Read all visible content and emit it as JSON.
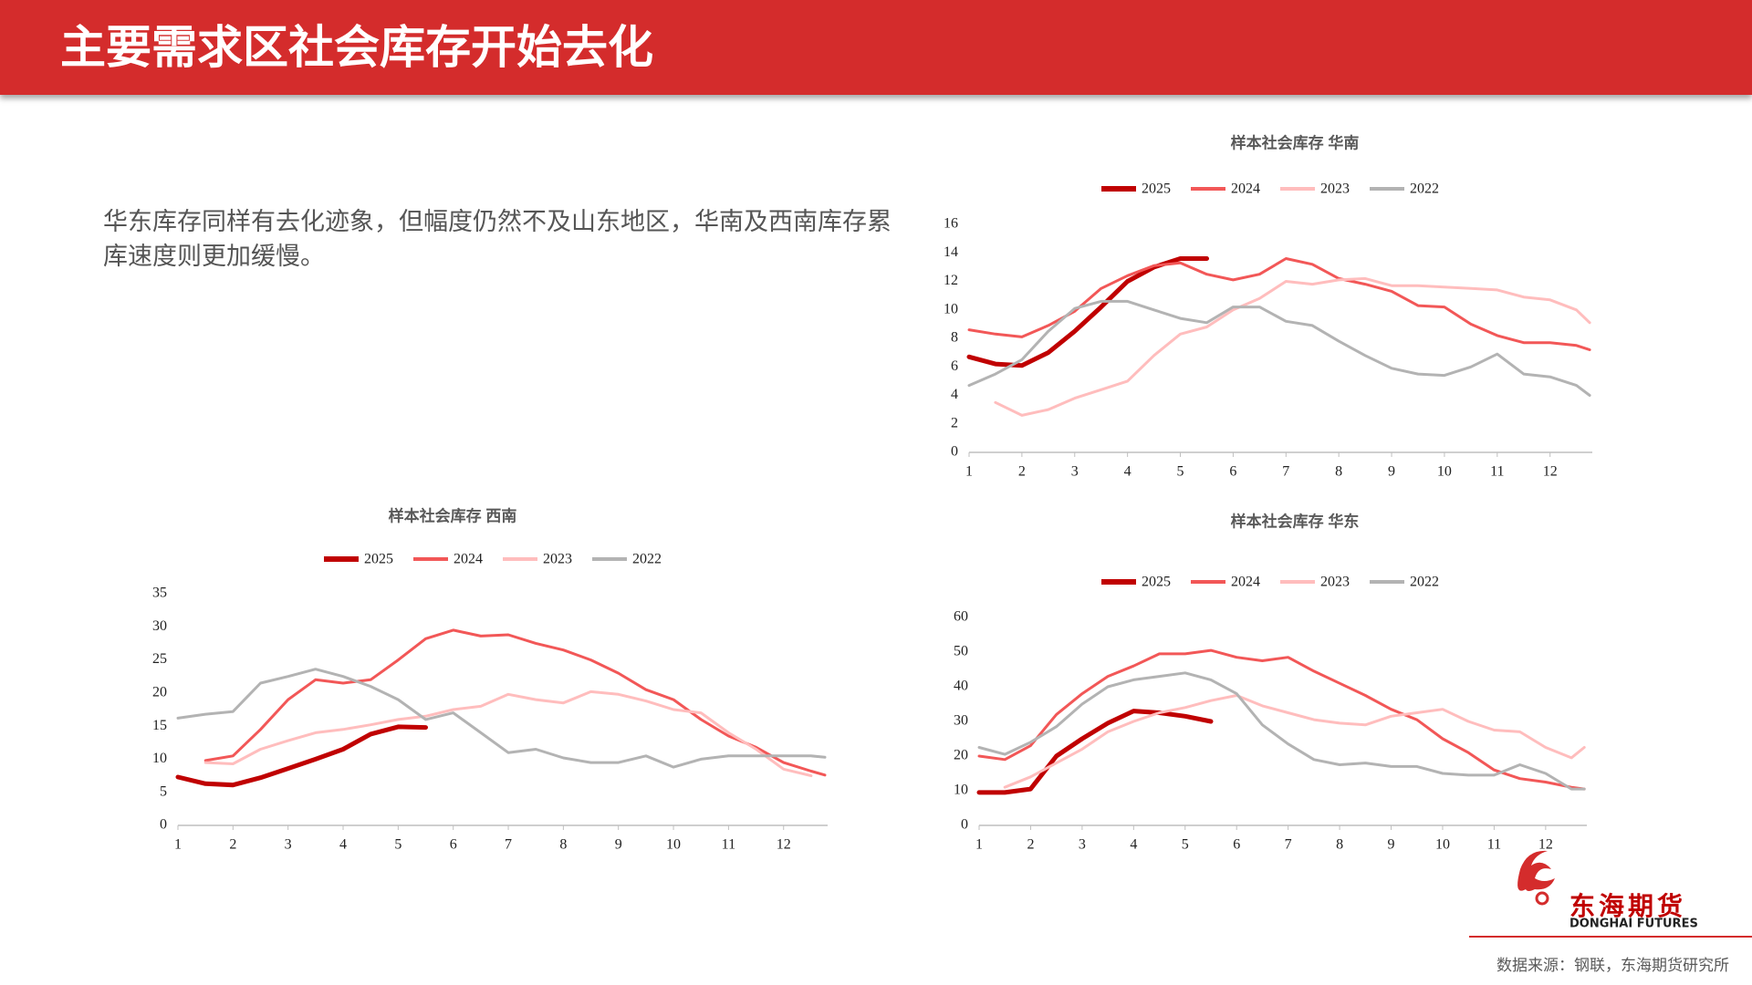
{
  "header": {
    "title": "主要需求区社会库存开始去化"
  },
  "body": {
    "text": "华东库存同样有去化迹象，但幅度仍然不及山东地区，华南及西南库存累库速度则更加缓慢。"
  },
  "chart_data": [
    {
      "type": "line",
      "title": "样本社会库存  华南",
      "legend": "top",
      "x": [
        1,
        1.5,
        2,
        2.5,
        3,
        3.5,
        4,
        4.5,
        5,
        5.5,
        6,
        6.5,
        7,
        7.5,
        8,
        8.5,
        9,
        9.5,
        10,
        10.5,
        11,
        11.5,
        12,
        12.5,
        12.75
      ],
      "xlim": [
        1,
        12.8
      ],
      "xticks": [
        1,
        2,
        3,
        4,
        5,
        6,
        7,
        8,
        9,
        10,
        11,
        12
      ],
      "ylim": [
        0,
        16
      ],
      "yticks": [
        0,
        2,
        4,
        6,
        8,
        10,
        12,
        14,
        16
      ],
      "series": [
        {
          "name": "2025",
          "color": "#c00000",
          "width": 5,
          "values": [
            6.7,
            6.2,
            6.1,
            7.0,
            8.5,
            10.2,
            12.0,
            13.0,
            13.6,
            13.6,
            null,
            null,
            null,
            null,
            null,
            null,
            null,
            null,
            null,
            null,
            null,
            null,
            null,
            null,
            null
          ]
        },
        {
          "name": "2024",
          "color": "#f25757",
          "width": 3,
          "values": [
            8.6,
            8.3,
            8.1,
            8.9,
            9.9,
            11.5,
            12.4,
            13.1,
            13.3,
            12.5,
            12.1,
            12.5,
            13.6,
            13.2,
            12.2,
            11.8,
            11.3,
            10.3,
            10.2,
            9.0,
            8.2,
            7.7,
            7.7,
            7.5,
            7.2
          ]
        },
        {
          "name": "2023",
          "color": "#ffbdbd",
          "width": 3,
          "values": [
            null,
            3.5,
            2.6,
            3.0,
            3.8,
            4.4,
            5.0,
            6.8,
            8.3,
            8.8,
            10.0,
            10.8,
            12.0,
            11.8,
            12.1,
            12.2,
            11.7,
            11.7,
            11.6,
            11.5,
            11.4,
            10.9,
            10.7,
            10.0,
            9.1
          ]
        },
        {
          "name": "2022",
          "color": "#b3b3b3",
          "width": 3,
          "values": [
            4.7,
            5.5,
            6.5,
            8.5,
            10.1,
            10.6,
            10.6,
            10.0,
            9.4,
            9.1,
            10.2,
            10.2,
            9.2,
            8.9,
            7.8,
            6.8,
            5.9,
            5.5,
            5.4,
            6.0,
            6.9,
            5.5,
            5.3,
            4.7,
            4.0
          ]
        }
      ]
    },
    {
      "type": "line",
      "title": "样本社会库存  西南",
      "legend": "top",
      "x": [
        1,
        1.5,
        2,
        2.5,
        3,
        3.5,
        4,
        4.5,
        5,
        5.5,
        6,
        6.5,
        7,
        7.5,
        8,
        8.5,
        9,
        9.5,
        10,
        10.5,
        11,
        11.5,
        12,
        12.5,
        12.75
      ],
      "xlim": [
        1,
        12.8
      ],
      "xticks": [
        1,
        2,
        3,
        4,
        5,
        6,
        7,
        8,
        9,
        10,
        11,
        12
      ],
      "ylim": [
        0,
        35
      ],
      "yticks": [
        0,
        5,
        10,
        15,
        20,
        25,
        30,
        35
      ],
      "series": [
        {
          "name": "2025",
          "color": "#c00000",
          "width": 5,
          "values": [
            7.3,
            6.3,
            6.1,
            7.2,
            8.6,
            10.0,
            11.5,
            13.8,
            14.9,
            14.8,
            null,
            null,
            null,
            null,
            null,
            null,
            null,
            null,
            null,
            null,
            null,
            null,
            null,
            null,
            null
          ]
        },
        {
          "name": "2024",
          "color": "#f25757",
          "width": 3,
          "values": [
            null,
            9.8,
            10.5,
            14.5,
            19,
            22,
            21.5,
            22,
            25,
            28.2,
            29.5,
            28.6,
            28.8,
            27.5,
            26.5,
            25,
            23,
            20.5,
            19,
            16,
            13.5,
            11.8,
            9.5,
            8.2,
            7.6
          ]
        },
        {
          "name": "2023",
          "color": "#ffbdbd",
          "width": 3,
          "values": [
            null,
            9.5,
            9.3,
            11.5,
            12.8,
            14.0,
            14.5,
            15.2,
            16,
            16.5,
            17.5,
            18,
            19.8,
            19,
            18.5,
            20.2,
            19.8,
            18.8,
            17.5,
            17,
            14,
            11.5,
            8.5,
            7.5,
            null
          ]
        },
        {
          "name": "2022",
          "color": "#b3b3b3",
          "width": 3,
          "values": [
            16.2,
            16.8,
            17.2,
            21.5,
            22.5,
            23.6,
            22.5,
            21,
            19,
            16,
            17,
            14,
            11,
            11.5,
            10.2,
            9.5,
            9.5,
            10.5,
            8.8,
            10,
            10.5,
            10.5,
            10.5,
            10.5,
            10.3
          ]
        }
      ]
    },
    {
      "type": "line",
      "title": "样本社会库存  华东",
      "legend": "top",
      "x": [
        1,
        1.5,
        2,
        2.5,
        3,
        3.5,
        4,
        4.5,
        5,
        5.5,
        6,
        6.5,
        7,
        7.5,
        8,
        8.5,
        9,
        9.5,
        10,
        10.5,
        11,
        11.5,
        12,
        12.5,
        12.75
      ],
      "xlim": [
        1,
        12.8
      ],
      "xticks": [
        1,
        2,
        3,
        4,
        5,
        6,
        7,
        8,
        9,
        10,
        11,
        12
      ],
      "ylim": [
        0,
        60
      ],
      "yticks": [
        0,
        10,
        20,
        30,
        40,
        50,
        60
      ],
      "series": [
        {
          "name": "2025",
          "color": "#c00000",
          "width": 5,
          "values": [
            9.5,
            9.5,
            10.5,
            20,
            25,
            29.5,
            33,
            32.5,
            31.5,
            30,
            null,
            null,
            null,
            null,
            null,
            null,
            null,
            null,
            null,
            null,
            null,
            null,
            null,
            null,
            null
          ]
        },
        {
          "name": "2024",
          "color": "#f25757",
          "width": 3,
          "values": [
            20,
            19,
            23,
            32,
            38,
            43,
            46,
            49.5,
            49.5,
            50.5,
            48.5,
            47.5,
            48.5,
            44.5,
            41,
            37.5,
            33.5,
            30.5,
            25,
            21,
            16,
            13.5,
            12.5,
            11,
            10.5
          ]
        },
        {
          "name": "2023",
          "color": "#ffbdbd",
          "width": 3,
          "values": [
            null,
            11,
            14,
            18,
            22,
            27,
            30,
            32.5,
            34,
            36,
            37.5,
            34.5,
            32.5,
            30.5,
            29.5,
            29,
            31.5,
            32.5,
            33.5,
            30,
            27.5,
            27,
            22.5,
            19.5,
            22.5
          ]
        },
        {
          "name": "2022",
          "color": "#b3b3b3",
          "width": 3,
          "values": [
            22.5,
            20.5,
            24,
            28.5,
            35,
            40,
            42,
            43,
            44,
            42,
            38,
            29,
            23.5,
            19,
            17.5,
            18,
            17,
            17,
            15,
            14.5,
            14.5,
            17.5,
            15,
            10.5,
            10.5
          ]
        }
      ]
    }
  ],
  "footer": {
    "logo_cn": "东海期货",
    "logo_en": "DONGHAI FUTURES",
    "source": "数据来源：钢联，东海期货研究所"
  }
}
